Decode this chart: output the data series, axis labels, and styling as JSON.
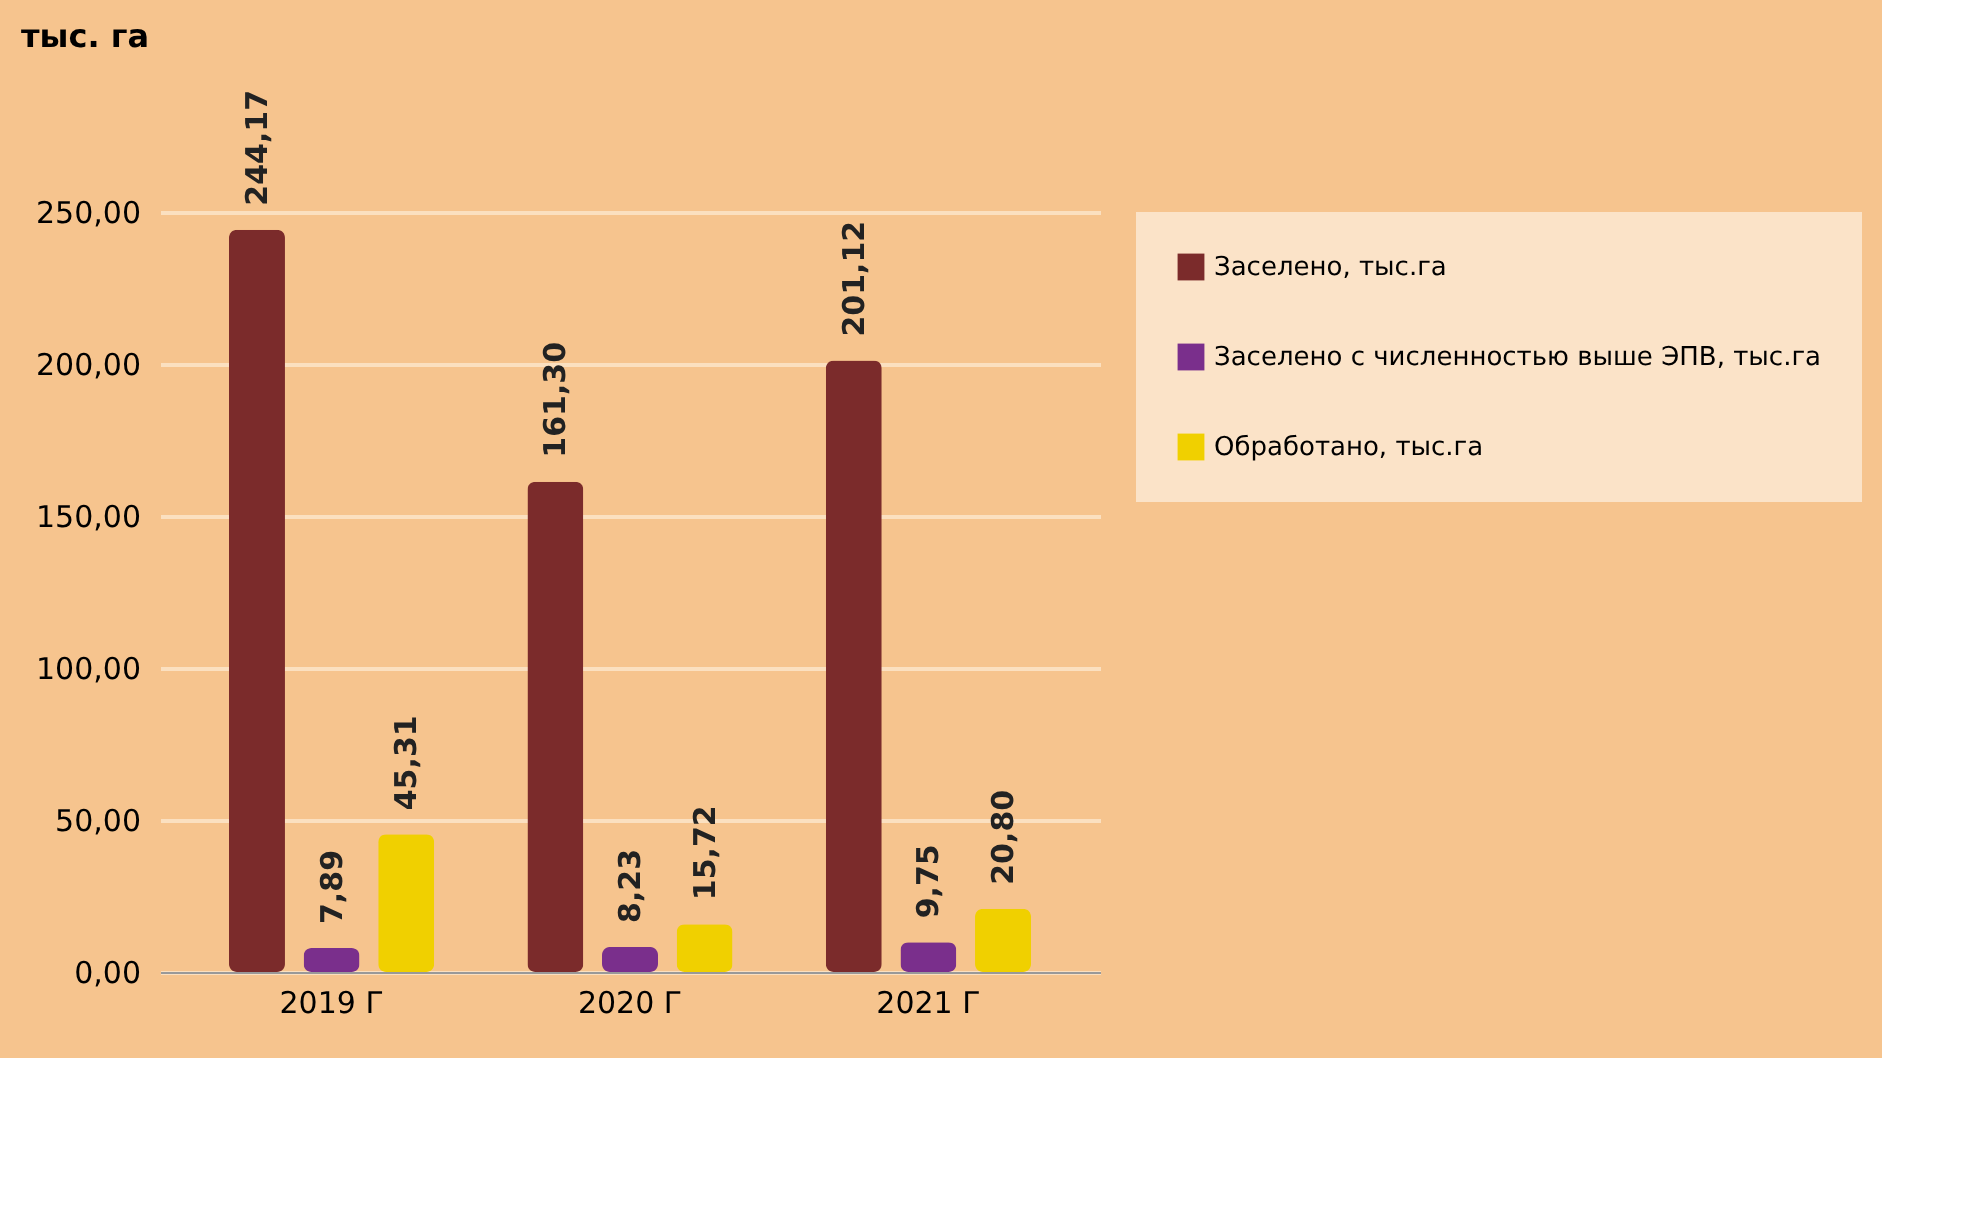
{
  "chart_data": {
    "type": "bar",
    "ylabel": "тыс. га",
    "categories": [
      "2019 Г",
      "2020 Г",
      "2021 Г"
    ],
    "series": [
      {
        "name": "Заселено, тыс.га",
        "color": "#7b2b2b",
        "values": [
          244.17,
          161.3,
          201.12
        ],
        "value_labels": [
          "244,17",
          "161,30",
          "201,12"
        ]
      },
      {
        "name": "Заселено с численностью выше ЭПВ, тыс.га",
        "color": "#7a2f8c",
        "values": [
          7.89,
          8.23,
          9.75
        ],
        "value_labels": [
          "7,89",
          "8,23",
          "9,75"
        ]
      },
      {
        "name": "Обработано, тыс.га",
        "color": "#f0d000",
        "values": [
          45.31,
          15.72,
          20.8
        ],
        "value_labels": [
          "45,31",
          "15,72",
          "20,80"
        ]
      }
    ],
    "ylim": [
      0,
      250
    ],
    "yticks": [
      {
        "value": 0,
        "label": "0,00"
      },
      {
        "value": 50,
        "label": "50,00"
      },
      {
        "value": 100,
        "label": "100,00"
      },
      {
        "value": 150,
        "label": "150,00"
      },
      {
        "value": 200,
        "label": "200,00"
      },
      {
        "value": 250,
        "label": "250,00"
      }
    ],
    "grid": "y",
    "legend": "right"
  }
}
